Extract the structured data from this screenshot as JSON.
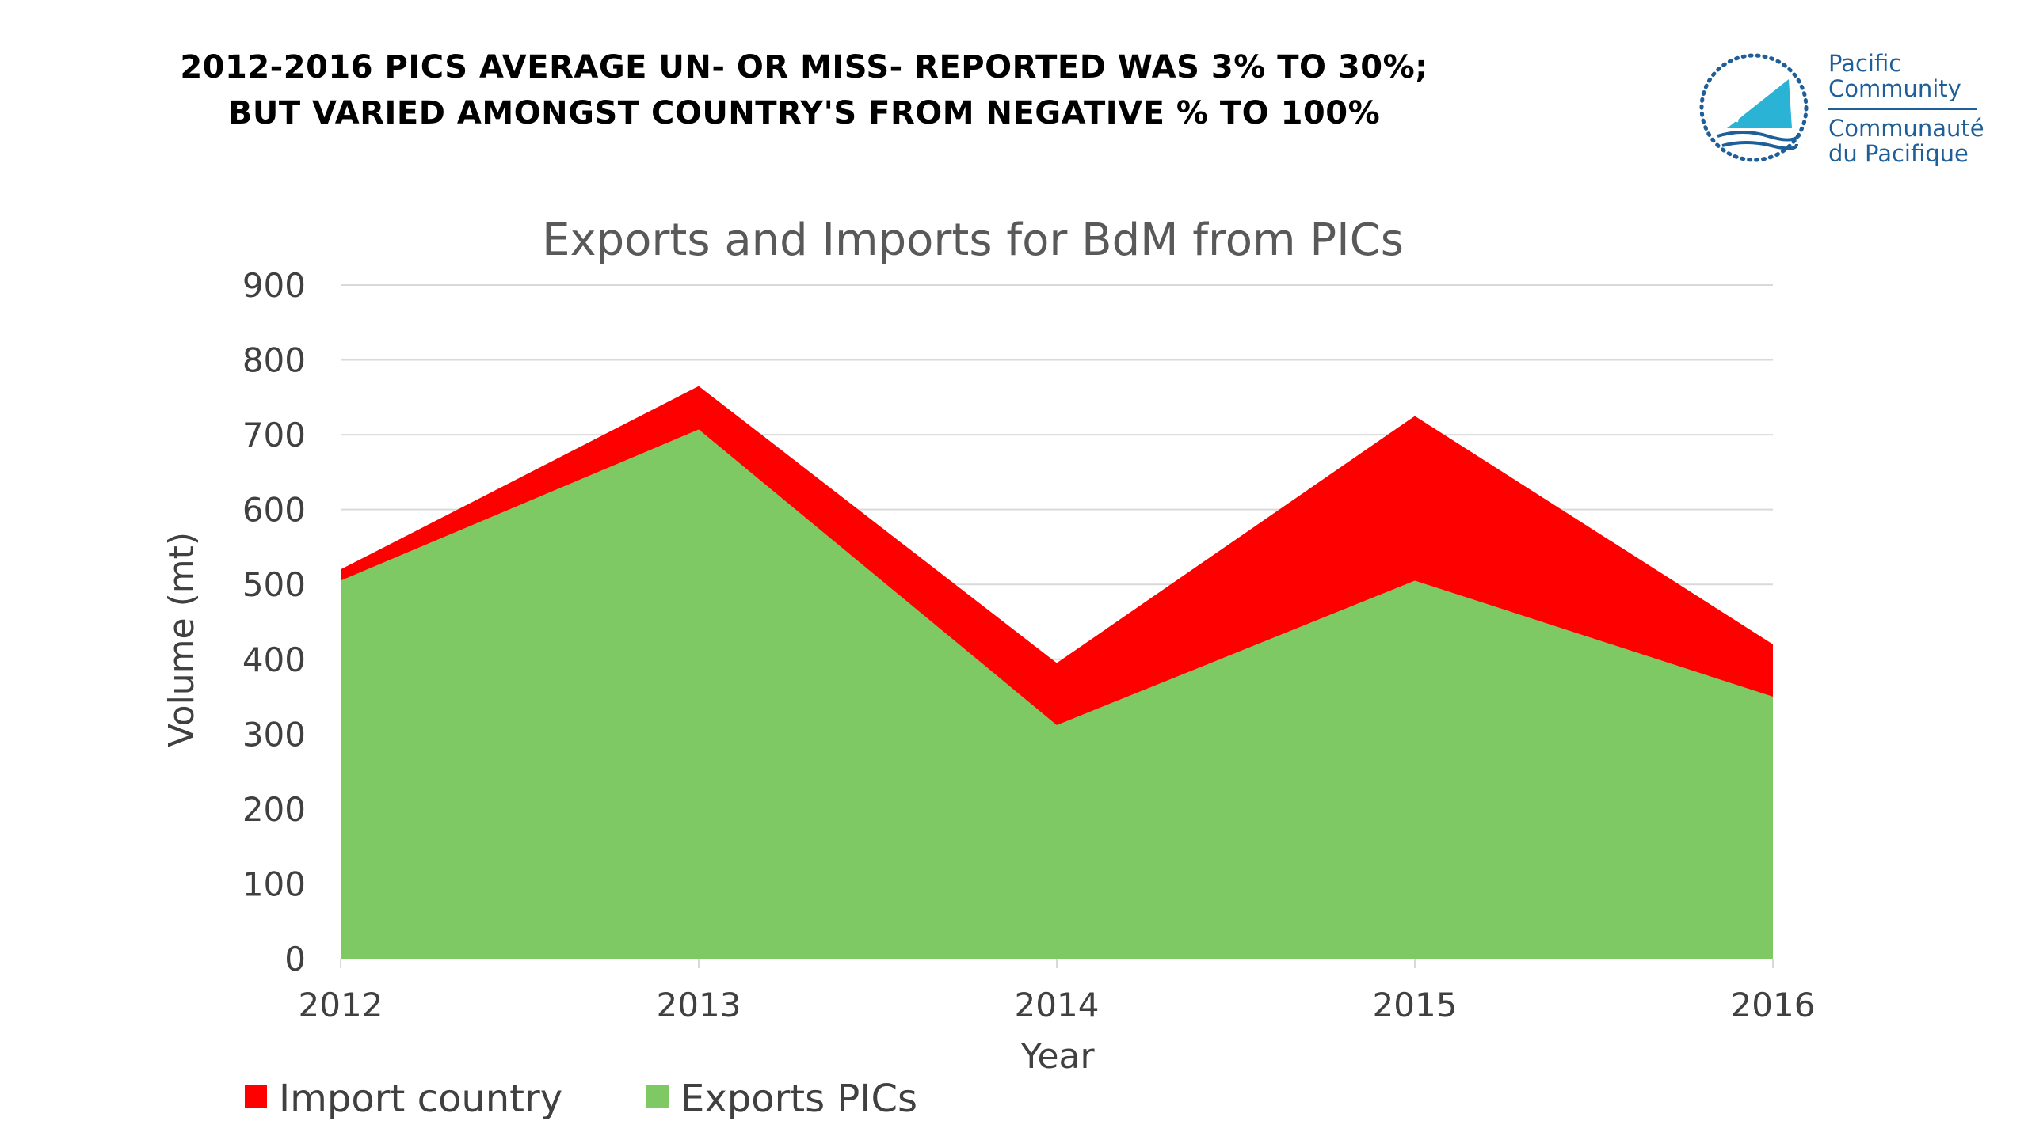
{
  "slide": {
    "headline_lines": [
      "2012-2016 PICS AVERAGE UN- OR MISS- REPORTED WAS 3% TO 30%;",
      "BUT VARIED AMONGST COUNTRY'S FROM NEGATIVE % TO 100%"
    ],
    "logo": {
      "icon": "pacific-community-logo-icon",
      "text_en": [
        "Pacific",
        "Community"
      ],
      "text_fr": [
        "Communauté",
        "du Pacifique"
      ],
      "color": "#1f5f99",
      "accent_color": "#2bb3d6"
    }
  },
  "chart_data": {
    "type": "area",
    "stacked": true,
    "title": "Exports and Imports for BdM  from PICs",
    "xlabel": "Year",
    "ylabel": "Volume  (mt)",
    "categories": [
      "2012",
      "2013",
      "2014",
      "2015",
      "2016"
    ],
    "series": [
      {
        "name": "Exports PICs",
        "values": [
          505,
          707,
          312,
          505,
          350
        ],
        "color": "#7ec963"
      },
      {
        "name": "Import country",
        "values": [
          15,
          58,
          83,
          220,
          70
        ],
        "color": "#ff0000"
      }
    ],
    "ylim": [
      0,
      900
    ],
    "yticks": [
      "0",
      "100",
      "200",
      "300",
      "400",
      "500",
      "600",
      "700",
      "800",
      "900"
    ],
    "grid": true,
    "legend_position": "bottom-left",
    "legend_order": [
      "Import country",
      "Exports PICs"
    ]
  }
}
